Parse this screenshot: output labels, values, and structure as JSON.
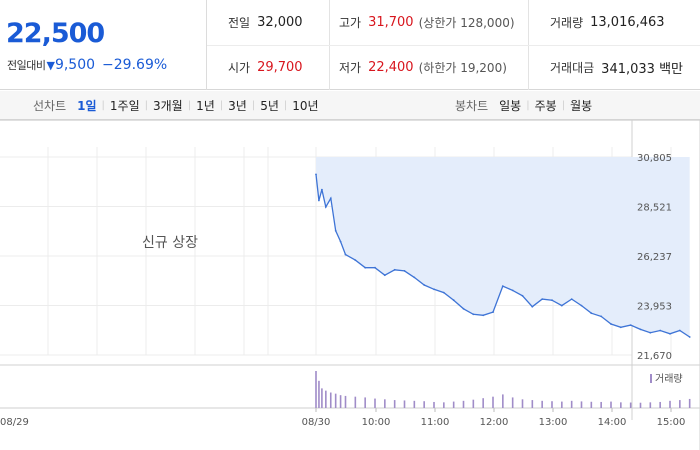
{
  "quote": {
    "price": "22,500",
    "change_label": "전일대비",
    "change_arrow": "▼",
    "change_amount": "9,500",
    "change_percent": "−29.69%",
    "prev_close": {
      "label": "전일",
      "value": "32,000"
    },
    "open": {
      "label": "시가",
      "value": "29,700"
    },
    "high": {
      "label": "고가",
      "value": "31,700",
      "sub": "(상한가 128,000)"
    },
    "low": {
      "label": "저가",
      "value": "22,400",
      "sub": "(하한가 19,200)"
    },
    "volume": {
      "label": "거래량",
      "value": "13,016,463"
    },
    "trade_value": {
      "label": "거래대금",
      "value": "341,033 백만"
    }
  },
  "tabs": {
    "line_lead": "선차트",
    "line": [
      "1일",
      "1주일",
      "3개월",
      "1년",
      "3년",
      "5년",
      "10년"
    ],
    "line_active": 0,
    "candle_lead": "봉차트",
    "candle": [
      "일봉",
      "주봉",
      "월봉"
    ]
  },
  "colors": {
    "price_down": "#1a5bd6",
    "price_up": "#d8161e",
    "line": "#3e74d6",
    "area_fill": "#e4edfb",
    "volume": "#a08cc8"
  },
  "chart_data": {
    "type": "area",
    "note": "신규 상장",
    "ylim": [
      21670,
      30805
    ],
    "y_ticks": [
      "30,805",
      "28,521",
      "26,237",
      "23,953",
      "21,670"
    ],
    "x_ticks": [
      "08/29",
      "08/30",
      "10:00",
      "11:00",
      "12:00",
      "13:00",
      "14:00",
      "15:00"
    ],
    "volume_label": "거래량",
    "series": [
      {
        "x": [
          "09:00",
          "09:03",
          "09:06",
          "09:10",
          "09:15",
          "09:20",
          "09:25",
          "09:30",
          "09:40",
          "09:50",
          "10:00",
          "10:10",
          "10:20",
          "10:30",
          "10:40",
          "10:50",
          "11:00",
          "11:10",
          "11:20",
          "11:30",
          "11:40",
          "11:50",
          "12:00",
          "12:10",
          "12:20",
          "12:30",
          "12:40",
          "12:50",
          "13:00",
          "13:10",
          "13:20",
          "13:30",
          "13:40",
          "13:50",
          "14:00",
          "14:10",
          "14:20",
          "14:30",
          "14:40",
          "14:50",
          "15:00",
          "15:10",
          "15:20"
        ],
        "values": [
          30000,
          28800,
          29300,
          28500,
          28900,
          27400,
          26900,
          26300,
          26050,
          25700,
          25700,
          25350,
          25600,
          25550,
          25250,
          24900,
          24700,
          24550,
          24200,
          23800,
          23550,
          23500,
          23650,
          24850,
          24650,
          24400,
          23900,
          24250,
          24200,
          23950,
          24250,
          23950,
          23600,
          23450,
          23100,
          22950,
          23050,
          22850,
          22700,
          22800,
          22650,
          22800,
          22500
        ]
      }
    ],
    "volume_shares": [
      980000,
      720000,
      520000,
      460000,
      410000,
      380000,
      340000,
      320000,
      300000,
      280000,
      250000,
      230000,
      210000,
      200000,
      190000,
      180000,
      160000,
      150000,
      170000,
      190000,
      220000,
      260000,
      300000,
      360000,
      280000,
      230000,
      210000,
      190000,
      180000,
      170000,
      190000,
      175000,
      165000,
      160000,
      170000,
      150000,
      145000,
      140000,
      150000,
      160000,
      190000,
      210000,
      240000
    ]
  }
}
